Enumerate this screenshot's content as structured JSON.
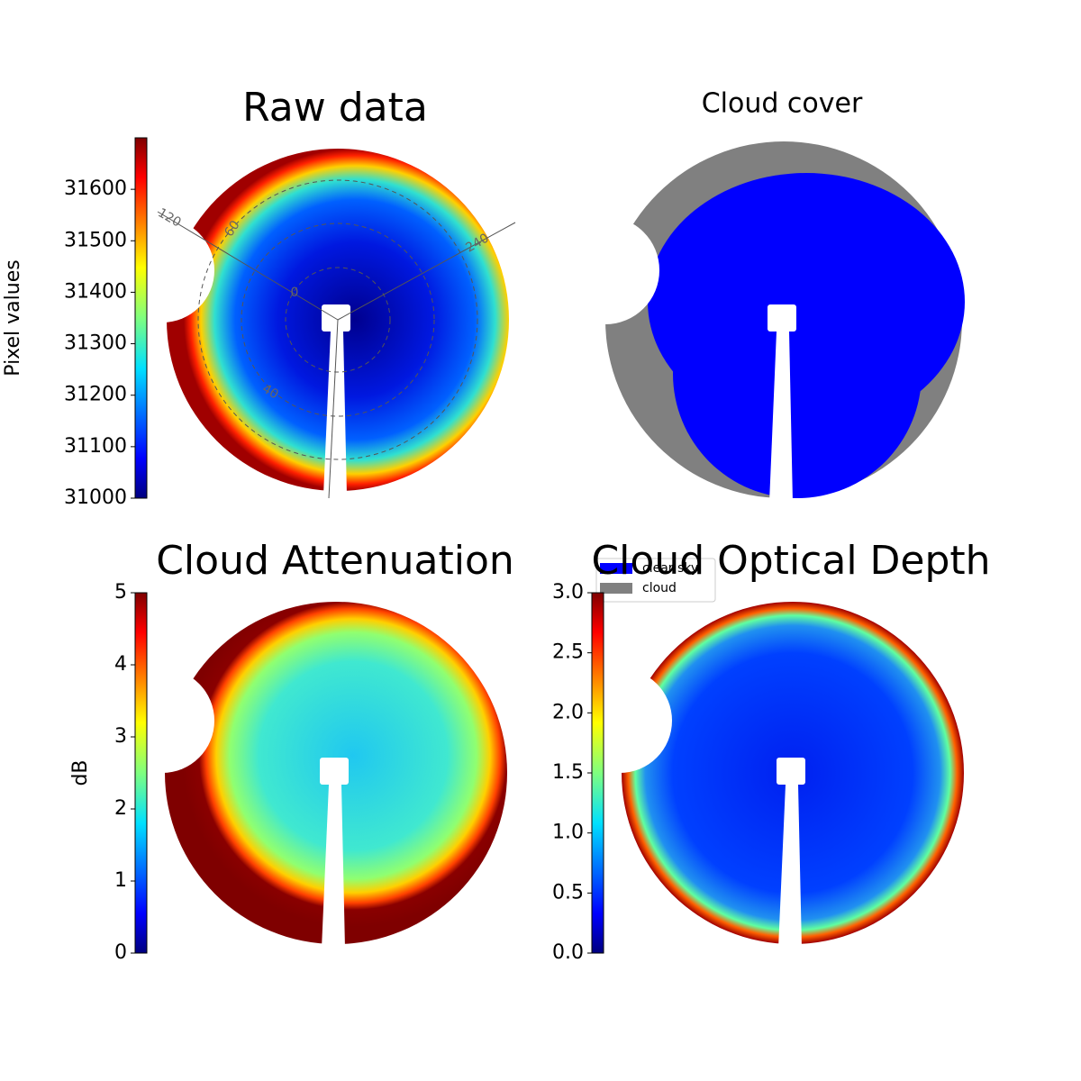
{
  "chart_data": [
    {
      "type": "image",
      "title": "Raw data",
      "ylabel": "Pixel values",
      "colormap": "jet",
      "ylim": [
        31000,
        31700
      ],
      "yticks": [
        31000,
        31100,
        31200,
        31300,
        31400,
        31500,
        31600
      ],
      "annotations": [
        "120",
        "60",
        "240",
        "0",
        "40"
      ]
    },
    {
      "type": "image",
      "title": "Cloud cover",
      "legend": [
        {
          "name": "clear sky",
          "color": "#0000ff"
        },
        {
          "name": "cloud",
          "color": "#808080"
        }
      ]
    },
    {
      "type": "image",
      "title": "Cloud Attenuation",
      "ylabel": "dB",
      "colormap": "jet",
      "ylim": [
        0,
        5
      ],
      "yticks": [
        0,
        1,
        2,
        3,
        4,
        5
      ]
    },
    {
      "type": "image",
      "title": "Cloud Optical Depth",
      "colormap": "jet",
      "ylim": [
        0,
        3
      ],
      "yticks": [
        {
          "value": 0,
          "label": "0.0"
        },
        0.5,
        {
          "value": 1,
          "label": "1.0"
        },
        1.5,
        {
          "value": 2,
          "label": "2.0"
        },
        2.5,
        {
          "value": 3,
          "label": "3.0"
        }
      ]
    }
  ]
}
